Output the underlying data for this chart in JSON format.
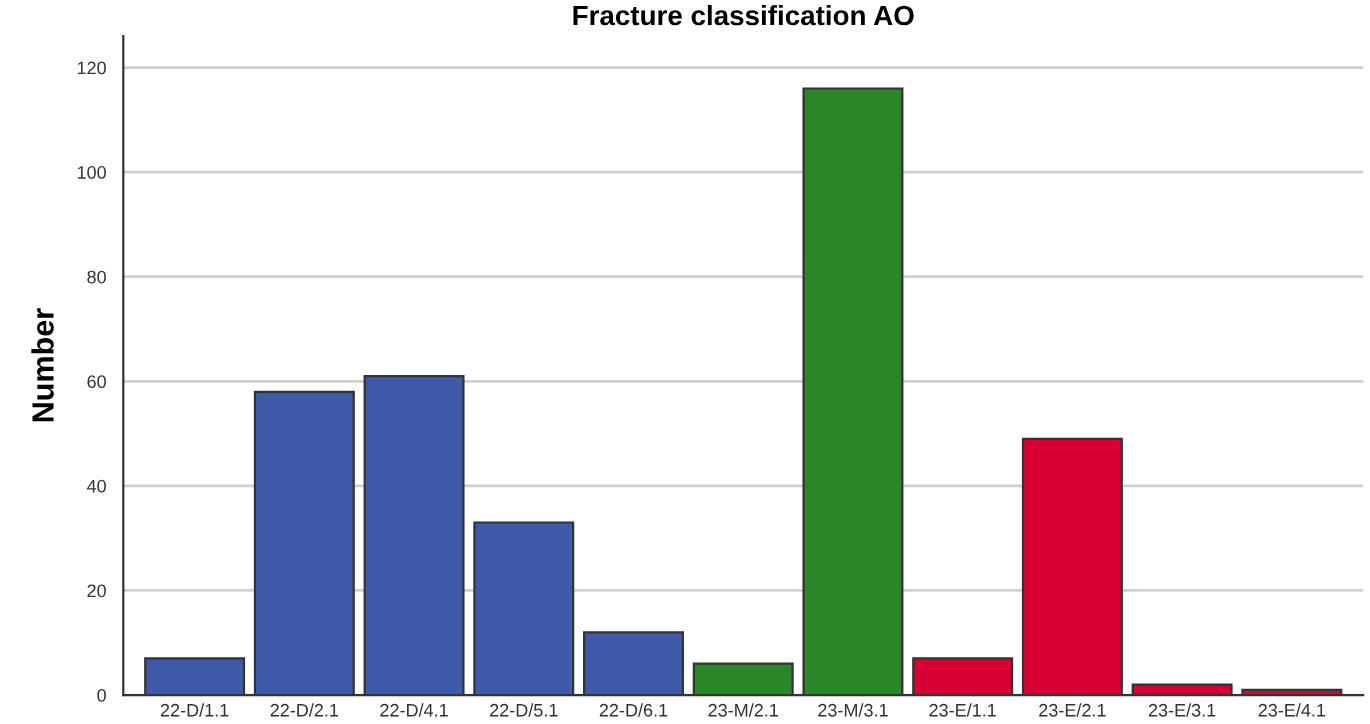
{
  "chart_data": {
    "type": "bar",
    "title": "Fracture classification AO",
    "ylabel": "Number",
    "categories": [
      "22-D/1.1",
      "22-D/2.1",
      "22-D/4.1",
      "22-D/5.1",
      "22-D/6.1",
      "23-M/2.1",
      "23-M/3.1",
      "23-E/1.1",
      "23-E/2.1",
      "23-E/3.1",
      "23-E/4.1"
    ],
    "values": [
      7,
      58,
      61,
      33,
      12,
      6,
      116,
      7,
      49,
      2,
      1
    ],
    "colors": [
      "#3f5aa8",
      "#3f5aa8",
      "#3f5aa8",
      "#3f5aa8",
      "#3f5aa8",
      "#2a8628",
      "#2a8628",
      "#d60032",
      "#d60032",
      "#d60032",
      "#d60032"
    ],
    "ylim": [
      0,
      126
    ],
    "yticks": [
      0,
      20,
      40,
      60,
      80,
      100,
      120
    ],
    "grid": "y"
  }
}
